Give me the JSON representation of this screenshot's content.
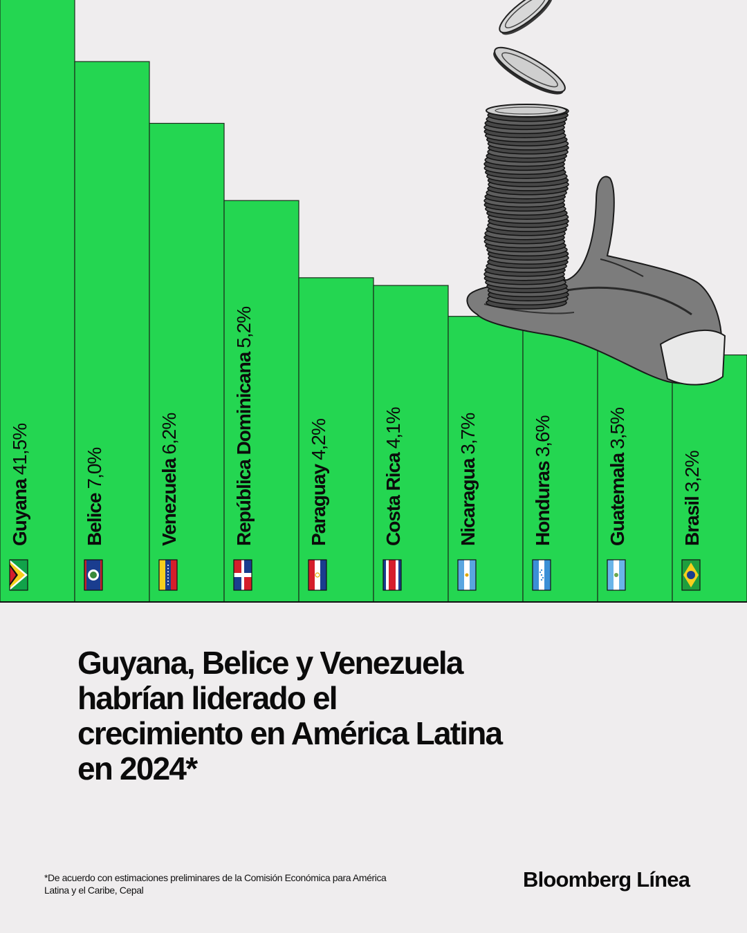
{
  "chart_data": {
    "type": "bar",
    "categories": [
      "Guyana",
      "Belice",
      "Venezuela",
      "República Dominicana",
      "Paraguay",
      "Costa Rica",
      "Nicaragua",
      "Honduras",
      "Guatemala",
      "Brasil"
    ],
    "values": [
      41.5,
      7.0,
      6.2,
      5.2,
      4.2,
      4.1,
      3.7,
      3.6,
      3.5,
      3.2
    ],
    "value_labels": [
      "41,5%",
      "7,0%",
      "6,2%",
      "5,2%",
      "4,2%",
      "4,1%",
      "3,7%",
      "3,6%",
      "3,5%",
      "3,2%"
    ],
    "flags": [
      "guyana-flag-icon",
      "belize-flag-icon",
      "venezuela-flag-icon",
      "dominican-republic-flag-icon",
      "paraguay-flag-icon",
      "costa-rica-flag-icon",
      "nicaragua-flag-icon",
      "honduras-flag-icon",
      "guatemala-flag-icon",
      "brazil-flag-icon"
    ],
    "title": "Guyana, Belice y Venezuela habrían liderado el crecimiento en América Latina en 2024*",
    "xlabel": "",
    "ylabel": "",
    "axis_break": "Guyana bar extends beyond top of frame",
    "grid": false,
    "legend": "none",
    "bar_color": "#24d651",
    "background_color": "#efedee",
    "illustration": "hand-holding-coin-stack-icon"
  },
  "footnote": "*De acuerdo con estimaciones preliminares de la Comisión Económica para América Latina y el Caribe, Cepal",
  "brand": "Bloomberg Línea"
}
